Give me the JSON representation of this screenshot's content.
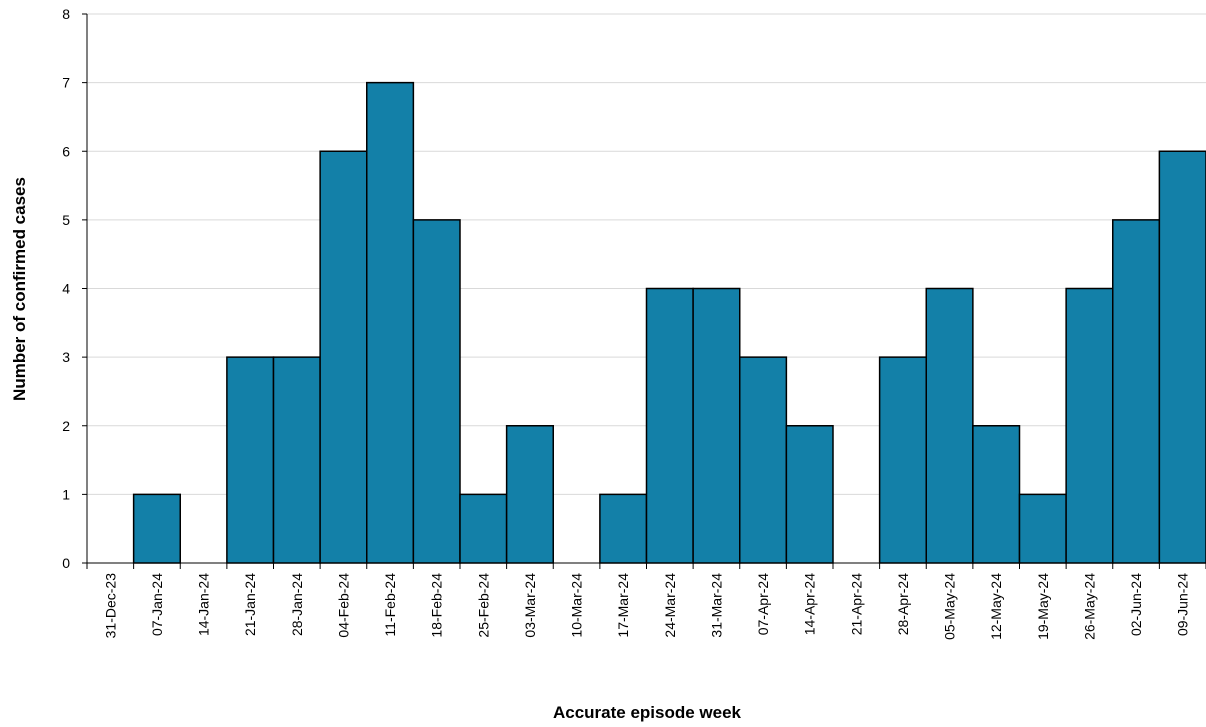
{
  "chart_data": {
    "type": "bar",
    "title": "",
    "xlabel": "Accurate episode week",
    "ylabel": "Number of confirmed cases",
    "ylim": [
      0,
      8
    ],
    "yticks": [
      0,
      1,
      2,
      3,
      4,
      5,
      6,
      7,
      8
    ],
    "grid": true,
    "bar_color": "#1380A8",
    "categories": [
      "31-Dec-23",
      "07-Jan-24",
      "14-Jan-24",
      "21-Jan-24",
      "28-Jan-24",
      "04-Feb-24",
      "11-Feb-24",
      "18-Feb-24",
      "25-Feb-24",
      "03-Mar-24",
      "10-Mar-24",
      "17-Mar-24",
      "24-Mar-24",
      "31-Mar-24",
      "07-Apr-24",
      "14-Apr-24",
      "21-Apr-24",
      "28-Apr-24",
      "05-May-24",
      "12-May-24",
      "19-May-24",
      "26-May-24",
      "02-Jun-24",
      "09-Jun-24"
    ],
    "values": [
      0,
      1,
      0,
      3,
      3,
      6,
      7,
      5,
      1,
      2,
      0,
      1,
      4,
      4,
      3,
      2,
      0,
      3,
      4,
      2,
      1,
      4,
      5,
      6
    ]
  }
}
